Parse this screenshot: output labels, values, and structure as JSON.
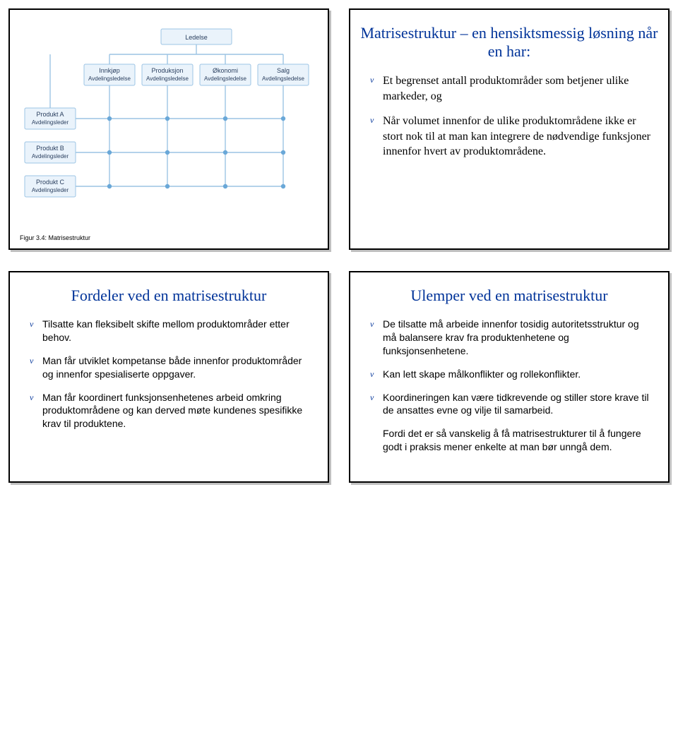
{
  "colors": {
    "heading": "#003399",
    "box_fill": "#eaf3fb",
    "box_stroke": "#9cc4e4",
    "line": "#9cc4e4",
    "dot": "#6aa8d8",
    "text": "#2a3f5f"
  },
  "diagram": {
    "type": "org-matrix",
    "caption": "Figur 3.4: Matrisestruktur",
    "top": {
      "title": "Ledelse"
    },
    "columns": [
      {
        "title": "Innkjøp",
        "subtitle": "Avdelingsledelse"
      },
      {
        "title": "Produksjon",
        "subtitle": "Avdelingsledelse"
      },
      {
        "title": "Økonomi",
        "subtitle": "Avdelingsledelse"
      },
      {
        "title": "Salg",
        "subtitle": "Avdelingsledelse"
      }
    ],
    "rows": [
      {
        "title": "Produkt A",
        "subtitle": "Avdelingsleder"
      },
      {
        "title": "Produkt B",
        "subtitle": "Avdelingsleder"
      },
      {
        "title": "Produkt C",
        "subtitle": "Avdelingsleder"
      }
    ]
  },
  "slide_tr": {
    "title": "Matrisestruktur – en hensiktsmessig løsning når en har:",
    "bullets": [
      "Et begrenset antall produktområder  som betjener ulike markeder, og",
      "Når volumet innenfor de ulike produktområdene ikke er stort nok til at man kan integrere de nødvendige funksjoner innenfor hvert av produktområdene."
    ]
  },
  "slide_bl": {
    "title": "Fordeler ved en matrisestruktur",
    "bullets": [
      "Tilsatte kan fleksibelt skifte mellom produktområder etter behov.",
      "Man får utviklet kompetanse både innenfor produktområder og innenfor spesialiserte oppgaver.",
      "Man får koordinert funksjonsenhetenes arbeid omkring produktområdene og kan derved møte kundenes spesifikke krav til produktene."
    ]
  },
  "slide_br": {
    "title": "Ulemper ved en matrisestruktur",
    "bullets": [
      "De tilsatte må arbeide innenfor tosidig autoritetsstruktur og må balansere krav fra produktenhetene og funksjonsenhetene.",
      "Kan lett skape målkonflikter og rollekonflikter.",
      "Koordineringen kan være tidkrevende og stiller store krave til de ansattes evne og vilje til samarbeid."
    ],
    "tail": "Fordi det er så vanskelig å få matrisestrukturer til å fungere godt i praksis mener enkelte at man bør unngå dem."
  }
}
